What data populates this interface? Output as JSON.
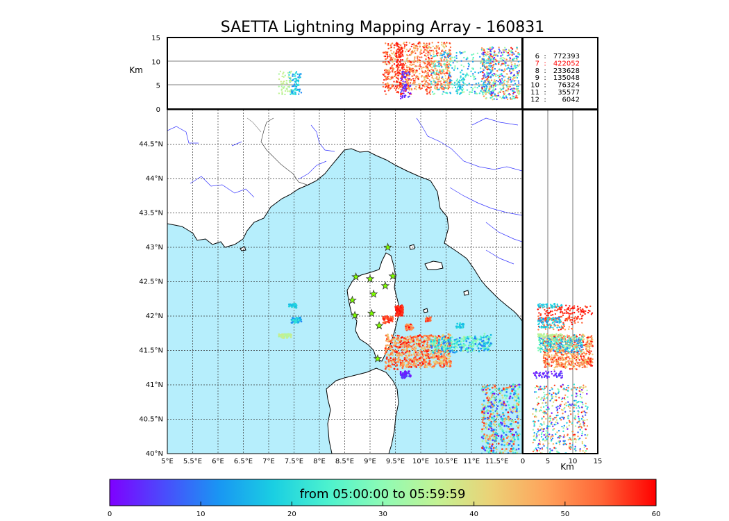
{
  "chart_data": {
    "type": "scatter",
    "title": "SAETTA Lightning Mapping Array - 160831",
    "time_range_label": "from 05:00:00 to 05:59:59",
    "map": {
      "lon_range": [
        5,
        12
      ],
      "lat_range": [
        40,
        45
      ],
      "lon_ticks": [
        "5°E",
        "5.5°E",
        "6°E",
        "6.5°E",
        "7°E",
        "7.5°E",
        "8°E",
        "8.5°E",
        "9°E",
        "9.5°E",
        "10°E",
        "10.5°E",
        "11°E",
        "11.5°E"
      ],
      "lat_ticks": [
        "40°N",
        "40.5°N",
        "41°N",
        "41.5°N",
        "42°N",
        "42.5°N",
        "43°N",
        "43.5°N",
        "44°N",
        "44.5°N"
      ]
    },
    "altitude_axis": {
      "label": "Km",
      "range": [
        0,
        15
      ],
      "ticks": [
        "0",
        "5",
        "10",
        "15"
      ]
    },
    "colorbar": {
      "range": [
        0,
        60
      ],
      "ticks": [
        "0",
        "10",
        "20",
        "30",
        "40",
        "50",
        "60"
      ],
      "colormap": [
        "#7f00ff",
        "#4a4cfc",
        "#1996f3",
        "#1acfe2",
        "#4cf2ce",
        "#8efbb5",
        "#c3f293",
        "#ecd176",
        "#ffa25b",
        "#ff6536",
        "#ff0000"
      ]
    },
    "station_stats": [
      {
        "station": "6",
        "count": "772393",
        "highlight": false
      },
      {
        "station": "7",
        "count": "422052",
        "highlight": true
      },
      {
        "station": "8",
        "count": "233628",
        "highlight": false
      },
      {
        "station": "9",
        "count": "135048",
        "highlight": false
      },
      {
        "station": "10",
        "count": "76324",
        "highlight": false
      },
      {
        "station": "11",
        "count": "35577",
        "highlight": false
      },
      {
        "station": "12",
        "count": "6042",
        "highlight": false
      }
    ],
    "stations": [
      {
        "lon": 9.35,
        "lat": 43.0
      },
      {
        "lon": 8.72,
        "lat": 42.57
      },
      {
        "lon": 9.0,
        "lat": 42.54
      },
      {
        "lon": 9.45,
        "lat": 42.58
      },
      {
        "lon": 9.3,
        "lat": 42.44
      },
      {
        "lon": 9.07,
        "lat": 42.32
      },
      {
        "lon": 8.65,
        "lat": 42.23
      },
      {
        "lon": 8.7,
        "lat": 42.01
      },
      {
        "lon": 9.03,
        "lat": 42.04
      },
      {
        "lon": 9.18,
        "lat": 41.86
      },
      {
        "lon": 9.15,
        "lat": 41.38
      }
    ],
    "clusters": [
      {
        "lon": [
          9.3,
          10.6
        ],
        "lat": [
          41.25,
          41.72
        ],
        "t": [
          40,
          60
        ],
        "alt": [
          4,
          14
        ],
        "n": 700
      },
      {
        "lon": [
          10.2,
          11.4
        ],
        "lat": [
          41.48,
          41.7
        ],
        "t": [
          8,
          35
        ],
        "alt": [
          3,
          12
        ],
        "n": 260
      },
      {
        "lon": [
          11.2,
          11.95
        ],
        "lat": [
          40.0,
          41.0
        ],
        "t": [
          0,
          60
        ],
        "alt": [
          2,
          13
        ],
        "n": 500
      },
      {
        "lon": [
          9.5,
          9.65
        ],
        "lat": [
          42.0,
          42.15
        ],
        "t": [
          55,
          60
        ],
        "alt": [
          3,
          14
        ],
        "n": 100
      },
      {
        "lon": [
          9.25,
          9.45
        ],
        "lat": [
          41.9,
          42.0
        ],
        "t": [
          52,
          60
        ],
        "alt": [
          3,
          12
        ],
        "n": 50
      },
      {
        "lon": [
          9.7,
          9.85
        ],
        "lat": [
          41.8,
          41.88
        ],
        "t": [
          45,
          60
        ],
        "alt": [
          3,
          10
        ],
        "n": 40
      },
      {
        "lon": [
          10.1,
          10.2
        ],
        "lat": [
          41.92,
          41.98
        ],
        "t": [
          50,
          58
        ],
        "alt": [
          3,
          10
        ],
        "n": 30
      },
      {
        "lon": [
          10.7,
          10.85
        ],
        "lat": [
          41.83,
          41.9
        ],
        "t": [
          14,
          22
        ],
        "alt": [
          3,
          9
        ],
        "n": 30
      },
      {
        "lon": [
          9.6,
          9.8
        ],
        "lat": [
          41.1,
          41.2
        ],
        "t": [
          0,
          6
        ],
        "alt": [
          2,
          8
        ],
        "n": 60
      },
      {
        "lon": [
          7.4,
          7.55
        ],
        "lat": [
          42.12,
          42.18
        ],
        "t": [
          14,
          22
        ],
        "alt": [
          3,
          8
        ],
        "n": 40
      },
      {
        "lon": [
          7.45,
          7.65
        ],
        "lat": [
          41.9,
          41.98
        ],
        "t": [
          10,
          22
        ],
        "alt": [
          3,
          8
        ],
        "n": 50
      },
      {
        "lon": [
          7.2,
          7.45
        ],
        "lat": [
          41.68,
          41.74
        ],
        "t": [
          33,
          38
        ],
        "alt": [
          3,
          8
        ],
        "n": 50
      }
    ]
  }
}
